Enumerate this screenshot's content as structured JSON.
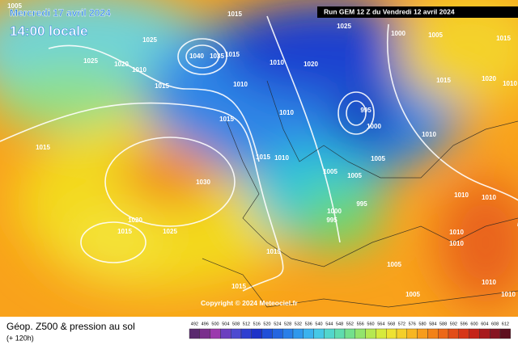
{
  "header": {
    "valid_date": "Mercredi 17 avril 2024",
    "valid_time": "14:00 locale",
    "run": "Run GEM 12 Z du Vendredi 12 avril 2024",
    "copyright": "Copyright © 2024 Meteociel.fr"
  },
  "footer": {
    "title": "Géop. Z500 & pression au sol",
    "lead": "(+ 120h)"
  },
  "legend": {
    "labels": [
      "492",
      "496",
      "500",
      "504",
      "508",
      "512",
      "516",
      "520",
      "524",
      "528",
      "532",
      "536",
      "540",
      "544",
      "548",
      "552",
      "556",
      "560",
      "564",
      "568",
      "572",
      "576",
      "580",
      "584",
      "588",
      "592",
      "596",
      "600",
      "604",
      "608",
      "612"
    ]
  },
  "pressure_labels": [
    "1005",
    "1015",
    "1025",
    "1000",
    "1005",
    "1015",
    "1025",
    "1040",
    "1035",
    "1015",
    "1025",
    "1020",
    "1010",
    "1010",
    "1020",
    "1015",
    "1020",
    "1010",
    "1015",
    "1010",
    "995",
    "1015",
    "1010",
    "1000",
    "1010",
    "1015",
    "1015",
    "1010",
    "1005",
    "1030",
    "1005",
    "1005",
    "1010",
    "1010",
    "995",
    "1000",
    "995",
    "1020",
    "1025",
    "1015",
    "1010",
    "1010",
    "1015",
    "1005",
    "1015",
    "1005",
    "1010",
    "1010"
  ]
}
